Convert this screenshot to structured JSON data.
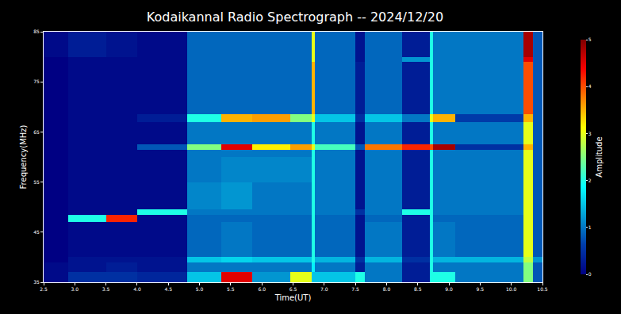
{
  "chart_data": {
    "type": "heatmap",
    "title": "Kodaikannal Radio Spectrograph -- 2024/12/20",
    "x_label": "Time(UT)",
    "y_label": "Frequency(MHz)",
    "color": "Jet",
    "color_label": "Amplitude",
    "color_range": [
      0,
      5
    ],
    "color_ticks": [
      0,
      1,
      2,
      3,
      4,
      5
    ],
    "x": [
      2.5,
      2.9,
      3.5,
      4.0,
      4.8,
      5.35,
      5.85,
      6.45,
      6.8,
      6.85,
      7.5,
      7.65,
      8.25,
      8.7,
      8.75,
      9.1,
      10.2,
      10.35,
      10.5
    ],
    "y": [
      35,
      37,
      39,
      40,
      47,
      48.5,
      49.5,
      55,
      60,
      61.5,
      62.5,
      67,
      68.5,
      79,
      80,
      85
    ],
    "cells": [
      [
        0.1,
        0.5,
        0.5,
        0.4,
        1.5,
        4.5,
        1.2,
        3.0,
        1.5,
        1.5,
        2.0,
        1.0,
        0.3,
        2,
        2.0,
        1.0,
        2.5,
        0.8
      ],
      [
        0.1,
        0.2,
        0.3,
        0.2,
        1.0,
        1.0,
        1.0,
        1.0,
        1.8,
        1.0,
        0.3,
        1.0,
        0.3,
        2,
        1.0,
        1.0,
        2.5,
        0.8
      ],
      [
        0,
        0.2,
        0.2,
        0.2,
        1.5,
        1.6,
        1.5,
        1.5,
        2,
        1.4,
        0.5,
        1.4,
        0.5,
        2,
        1.4,
        1.4,
        2.8,
        1.2
      ],
      [
        0,
        0.1,
        0.1,
        0.1,
        0.9,
        1.0,
        0.9,
        0.9,
        2,
        0.9,
        0.2,
        1.0,
        0.3,
        2,
        1.0,
        0.9,
        3,
        0.8
      ],
      [
        0,
        2.0,
        4.2,
        0.1,
        0.9,
        0.9,
        0.9,
        0.9,
        2,
        0.9,
        0.2,
        0.9,
        0.3,
        2,
        0.9,
        0.9,
        3,
        0.8
      ],
      [
        0,
        0.1,
        0.1,
        2.0,
        1.0,
        1.0,
        1.0,
        1.0,
        2,
        1.0,
        0.5,
        1.0,
        2.0,
        2,
        1.0,
        1.0,
        3,
        0.8
      ],
      [
        0,
        0.1,
        0.1,
        0.1,
        1.1,
        1.2,
        1.0,
        1.0,
        2,
        1.0,
        0.2,
        1.0,
        0.3,
        2,
        1.0,
        1.0,
        3,
        0.8
      ],
      [
        0,
        0.1,
        0.1,
        0.1,
        1.0,
        1.1,
        1.1,
        1.1,
        2,
        1.0,
        0.2,
        1.0,
        0.3,
        2,
        1.0,
        1.0,
        3,
        0.8
      ],
      [
        0,
        0.1,
        0.1,
        0.1,
        1.0,
        1.0,
        1.0,
        1.0,
        2,
        1.0,
        0.2,
        1.0,
        0.3,
        2,
        1.0,
        1.0,
        3,
        0.8
      ],
      [
        0,
        0.1,
        0.1,
        0.8,
        2.5,
        4.5,
        3.2,
        3.6,
        3,
        2.2,
        0.8,
        3.8,
        4.2,
        4,
        4.8,
        0.5,
        3.5,
        0.8
      ],
      [
        0,
        0.1,
        0.1,
        0.1,
        1.0,
        1.0,
        1.0,
        1.0,
        2,
        1.0,
        0.2,
        1.0,
        0.3,
        2,
        1.0,
        1.0,
        3,
        0.8
      ],
      [
        0,
        0.1,
        0.1,
        0.3,
        2.0,
        3.5,
        3.6,
        2.5,
        3,
        1.5,
        0.5,
        1.5,
        1.0,
        3,
        3.5,
        0.6,
        3.5,
        0.8
      ],
      [
        0,
        0.1,
        0.1,
        0.1,
        0.9,
        0.9,
        0.9,
        0.9,
        3.5,
        0.9,
        0.3,
        0.9,
        0.3,
        2,
        1.0,
        1.0,
        4.0,
        0.8
      ],
      [
        0,
        0.1,
        0.1,
        0.1,
        0.9,
        0.9,
        0.9,
        0.9,
        3,
        0.9,
        0.2,
        0.9,
        1.2,
        2,
        1.0,
        1.0,
        4.5,
        0.8
      ],
      [
        0.1,
        0.3,
        0.2,
        0.1,
        0.9,
        0.9,
        0.9,
        0.9,
        3,
        0.9,
        0.2,
        0.9,
        0.3,
        2,
        1.0,
        1.0,
        4.8,
        0.8
      ]
    ],
    "xlim": [
      2.5,
      10.5
    ],
    "ylim": [
      35,
      85
    ],
    "xticks": [
      2.5,
      {
        "value": 3,
        "label": "3.0"
      },
      3.5,
      {
        "value": 4,
        "label": "4.0"
      },
      4.5,
      {
        "value": 5,
        "label": "5.0"
      },
      5.5,
      {
        "value": 6,
        "label": "6.0"
      },
      6.5,
      {
        "value": 7,
        "label": "7.0"
      },
      7.5,
      {
        "value": 8,
        "label": "8.0"
      },
      8.5,
      {
        "value": 9,
        "label": "9.0"
      },
      9.5,
      {
        "value": 10,
        "label": "10.0"
      },
      10.5
    ],
    "yticks": [
      35,
      45,
      55,
      65,
      75,
      85
    ],
    "grid": false
  }
}
